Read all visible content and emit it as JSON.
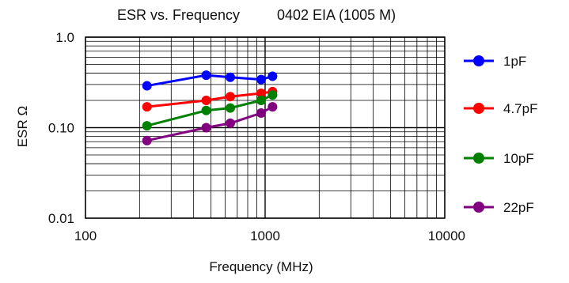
{
  "chart_data": {
    "type": "line",
    "title": "ESR vs. Frequency",
    "subtitle": "0402 EIA (1005 M)",
    "xlabel": "Frequency (MHz)",
    "ylabel": "ESR Ω",
    "x_scale": "log",
    "y_scale": "log",
    "xlim": [
      100,
      10000
    ],
    "ylim": [
      0.01,
      1.0
    ],
    "x_ticks": [
      "100",
      "1000",
      "10000"
    ],
    "y_ticks": [
      "1.0",
      "0.10",
      "0.01"
    ],
    "grid": true,
    "legend_position": "right",
    "series": [
      {
        "name": "1pF",
        "color": "#0000ff",
        "x": [
          220,
          470,
          640,
          950,
          1100
        ],
        "y": [
          0.29,
          0.38,
          0.36,
          0.34,
          0.37
        ]
      },
      {
        "name": "4.7pF",
        "color": "#ff0000",
        "x": [
          220,
          470,
          640,
          950,
          1100
        ],
        "y": [
          0.17,
          0.2,
          0.22,
          0.24,
          0.25
        ]
      },
      {
        "name": "10pF",
        "color": "#008000",
        "x": [
          220,
          470,
          640,
          950,
          1100
        ],
        "y": [
          0.105,
          0.155,
          0.165,
          0.2,
          0.23
        ]
      },
      {
        "name": "22pF",
        "color": "#800080",
        "x": [
          220,
          470,
          640,
          950,
          1100
        ],
        "y": [
          0.072,
          0.1,
          0.112,
          0.145,
          0.17
        ]
      }
    ]
  }
}
